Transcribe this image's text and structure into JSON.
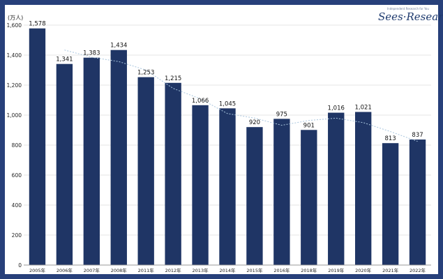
{
  "chart_data": {
    "type": "bar",
    "unit_label": "(万人)",
    "categories": [
      "2005年",
      "2006年",
      "2007年",
      "2008年",
      "2011年",
      "2012年",
      "2013年",
      "2014年",
      "2015年",
      "2016年",
      "2018年",
      "2019年",
      "2020年",
      "2021年",
      "2022年"
    ],
    "values": [
      1578,
      1341,
      1383,
      1434,
      1253,
      1215,
      1066,
      1045,
      920,
      975,
      901,
      1016,
      1021,
      813,
      837
    ],
    "value_labels": [
      "1,578",
      "1,341",
      "1,383",
      "1,434",
      "1,253",
      "1,215",
      "1,066",
      "1,045",
      "920",
      "975",
      "901",
      "1,016",
      "1,021",
      "813",
      "837"
    ],
    "ylim": [
      0,
      1600
    ],
    "yticks": [
      0,
      200,
      400,
      600,
      800,
      1000,
      1200,
      1400,
      1600
    ],
    "ytick_labels": [
      "0",
      "200",
      "400",
      "600",
      "800",
      "1,000",
      "1,200",
      "1,400",
      "1,600"
    ],
    "trendline": true,
    "grid": true,
    "colors": {
      "bar": "#1f3565",
      "trend": "#a9c6de",
      "frame": "#27407a",
      "grid": "#e6e6e6"
    }
  },
  "logo": {
    "text": "Sees·Research",
    "tagline": "Independent Research for You"
  }
}
